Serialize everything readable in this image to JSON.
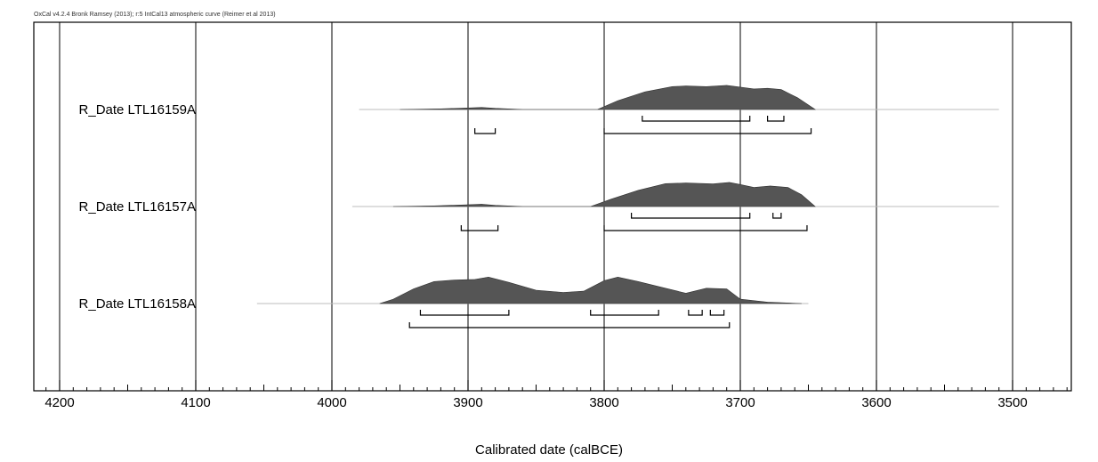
{
  "credit": "OxCal v4.2.4 Bronk Ramsey (2013); r:5 IntCal13 atmospheric curve (Reimer et al 2013)",
  "chart_data": {
    "type": "area",
    "xlabel": "Calibrated date (calBCE)",
    "x_axis_reversed": true,
    "xlim": [
      4210,
      3455
    ],
    "x_ticks": [
      "4200",
      "4100",
      "4000",
      "3900",
      "3800",
      "3700",
      "3600",
      "3500"
    ],
    "x_tick_values": [
      4200,
      4100,
      4000,
      3900,
      3800,
      3700,
      3600,
      3500
    ],
    "grid": true,
    "color": "#555555",
    "series": [
      {
        "name": "R_Date LTL16159A",
        "curve_range": [
          3980,
          3510
        ],
        "density": [
          [
            3950,
            0
          ],
          [
            3920,
            0.02
          ],
          [
            3900,
            0.05
          ],
          [
            3890,
            0.07
          ],
          [
            3880,
            0.04
          ],
          [
            3860,
            0
          ],
          [
            3805,
            0
          ],
          [
            3790,
            0.3
          ],
          [
            3770,
            0.6
          ],
          [
            3750,
            0.78
          ],
          [
            3740,
            0.8
          ],
          [
            3725,
            0.78
          ],
          [
            3710,
            0.82
          ],
          [
            3703,
            0.78
          ],
          [
            3690,
            0.7
          ],
          [
            3680,
            0.72
          ],
          [
            3670,
            0.68
          ],
          [
            3658,
            0.4
          ],
          [
            3645,
            0
          ]
        ],
        "range_68": [
          [
            3772,
            3693
          ],
          [
            3680,
            3668
          ]
        ],
        "range_95": [
          [
            3895,
            3880
          ],
          [
            3800,
            3648
          ]
        ]
      },
      {
        "name": "R_Date LTL16157A",
        "curve_range": [
          3985,
          3510
        ],
        "density": [
          [
            3955,
            0
          ],
          [
            3925,
            0.02
          ],
          [
            3905,
            0.05
          ],
          [
            3890,
            0.08
          ],
          [
            3880,
            0.04
          ],
          [
            3860,
            0
          ],
          [
            3810,
            0
          ],
          [
            3795,
            0.25
          ],
          [
            3775,
            0.55
          ],
          [
            3755,
            0.78
          ],
          [
            3740,
            0.8
          ],
          [
            3720,
            0.77
          ],
          [
            3708,
            0.82
          ],
          [
            3700,
            0.75
          ],
          [
            3690,
            0.65
          ],
          [
            3678,
            0.7
          ],
          [
            3665,
            0.65
          ],
          [
            3655,
            0.4
          ],
          [
            3645,
            0
          ]
        ],
        "range_68": [
          [
            3780,
            3693
          ],
          [
            3676,
            3670
          ]
        ],
        "range_95": [
          [
            3905,
            3878
          ],
          [
            3800,
            3651
          ]
        ]
      },
      {
        "name": "R_Date LTL16158A",
        "curve_range": [
          4055,
          3650
        ],
        "density": [
          [
            3965,
            0
          ],
          [
            3955,
            0.15
          ],
          [
            3940,
            0.5
          ],
          [
            3925,
            0.75
          ],
          [
            3910,
            0.8
          ],
          [
            3895,
            0.82
          ],
          [
            3885,
            0.9
          ],
          [
            3870,
            0.72
          ],
          [
            3850,
            0.45
          ],
          [
            3830,
            0.38
          ],
          [
            3815,
            0.42
          ],
          [
            3800,
            0.78
          ],
          [
            3790,
            0.9
          ],
          [
            3775,
            0.75
          ],
          [
            3755,
            0.52
          ],
          [
            3740,
            0.35
          ],
          [
            3725,
            0.52
          ],
          [
            3710,
            0.5
          ],
          [
            3700,
            0.15
          ],
          [
            3680,
            0.05
          ],
          [
            3655,
            0
          ]
        ],
        "range_68": [
          [
            3935,
            3870
          ],
          [
            3810,
            3760
          ],
          [
            3738,
            3728
          ],
          [
            3722,
            3712
          ]
        ],
        "range_95": [
          [
            3943,
            3708
          ]
        ]
      }
    ]
  }
}
